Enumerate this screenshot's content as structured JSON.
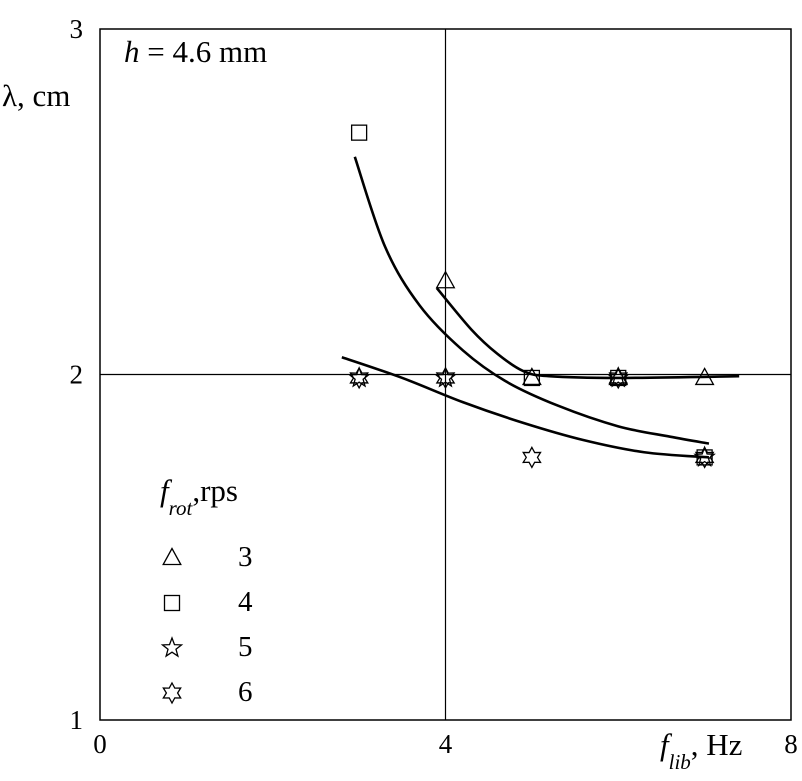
{
  "chart_data": {
    "type": "scatter",
    "title": "",
    "annotation": {
      "h_var": "h",
      "h_text": " = 4.6 mm"
    },
    "xlabel": {
      "main": "f",
      "sub": "lib",
      "unit": ", Hz"
    },
    "ylabel": "λ, cm",
    "xlim": [
      0,
      8
    ],
    "ylim": [
      1,
      3
    ],
    "x_ticks": [
      "0",
      "4",
      "8"
    ],
    "y_ticks": [
      "1",
      "2",
      "3"
    ],
    "grid_lines": {
      "x": 4,
      "y": 2
    },
    "legend": {
      "title_main": "f",
      "title_sub": "rot",
      "title_unit": ",rps",
      "placement": "lower-left"
    },
    "series": [
      {
        "name": "3",
        "marker": "triangle",
        "points": [
          [
            4,
            2.27
          ],
          [
            5,
            1.99
          ],
          [
            6,
            1.99
          ],
          [
            7,
            1.99
          ]
        ]
      },
      {
        "name": "4",
        "marker": "square",
        "points": [
          [
            3,
            2.7
          ],
          [
            5,
            1.99
          ],
          [
            6,
            1.99
          ],
          [
            7,
            1.76
          ]
        ]
      },
      {
        "name": "5",
        "marker": "star5",
        "points": [
          [
            3,
            1.99
          ],
          [
            4,
            1.99
          ],
          [
            6,
            1.99
          ],
          [
            7,
            1.76
          ]
        ]
      },
      {
        "name": "6",
        "marker": "star6",
        "points": [
          [
            3,
            1.99
          ],
          [
            4,
            1.99
          ],
          [
            5,
            1.76
          ],
          [
            6,
            1.99
          ],
          [
            7,
            1.76
          ]
        ]
      }
    ],
    "fit_curves": [
      [
        [
          3.9,
          2.25
        ],
        [
          4.3,
          2.13
        ],
        [
          4.6,
          2.06
        ],
        [
          4.9,
          2.01
        ],
        [
          5.2,
          1.995
        ],
        [
          6.0,
          1.99
        ],
        [
          7.4,
          1.995
        ]
      ],
      [
        [
          2.95,
          2.63
        ],
        [
          3.3,
          2.37
        ],
        [
          3.7,
          2.2
        ],
        [
          4.2,
          2.07
        ],
        [
          4.7,
          1.98
        ],
        [
          5.3,
          1.91
        ],
        [
          6.0,
          1.85
        ],
        [
          6.6,
          1.82
        ],
        [
          7.05,
          1.8
        ]
      ],
      [
        [
          2.8,
          2.05
        ],
        [
          3.5,
          1.99
        ],
        [
          4.2,
          1.92
        ],
        [
          4.9,
          1.86
        ],
        [
          5.6,
          1.81
        ],
        [
          6.3,
          1.775
        ],
        [
          7.05,
          1.76
        ]
      ]
    ]
  }
}
